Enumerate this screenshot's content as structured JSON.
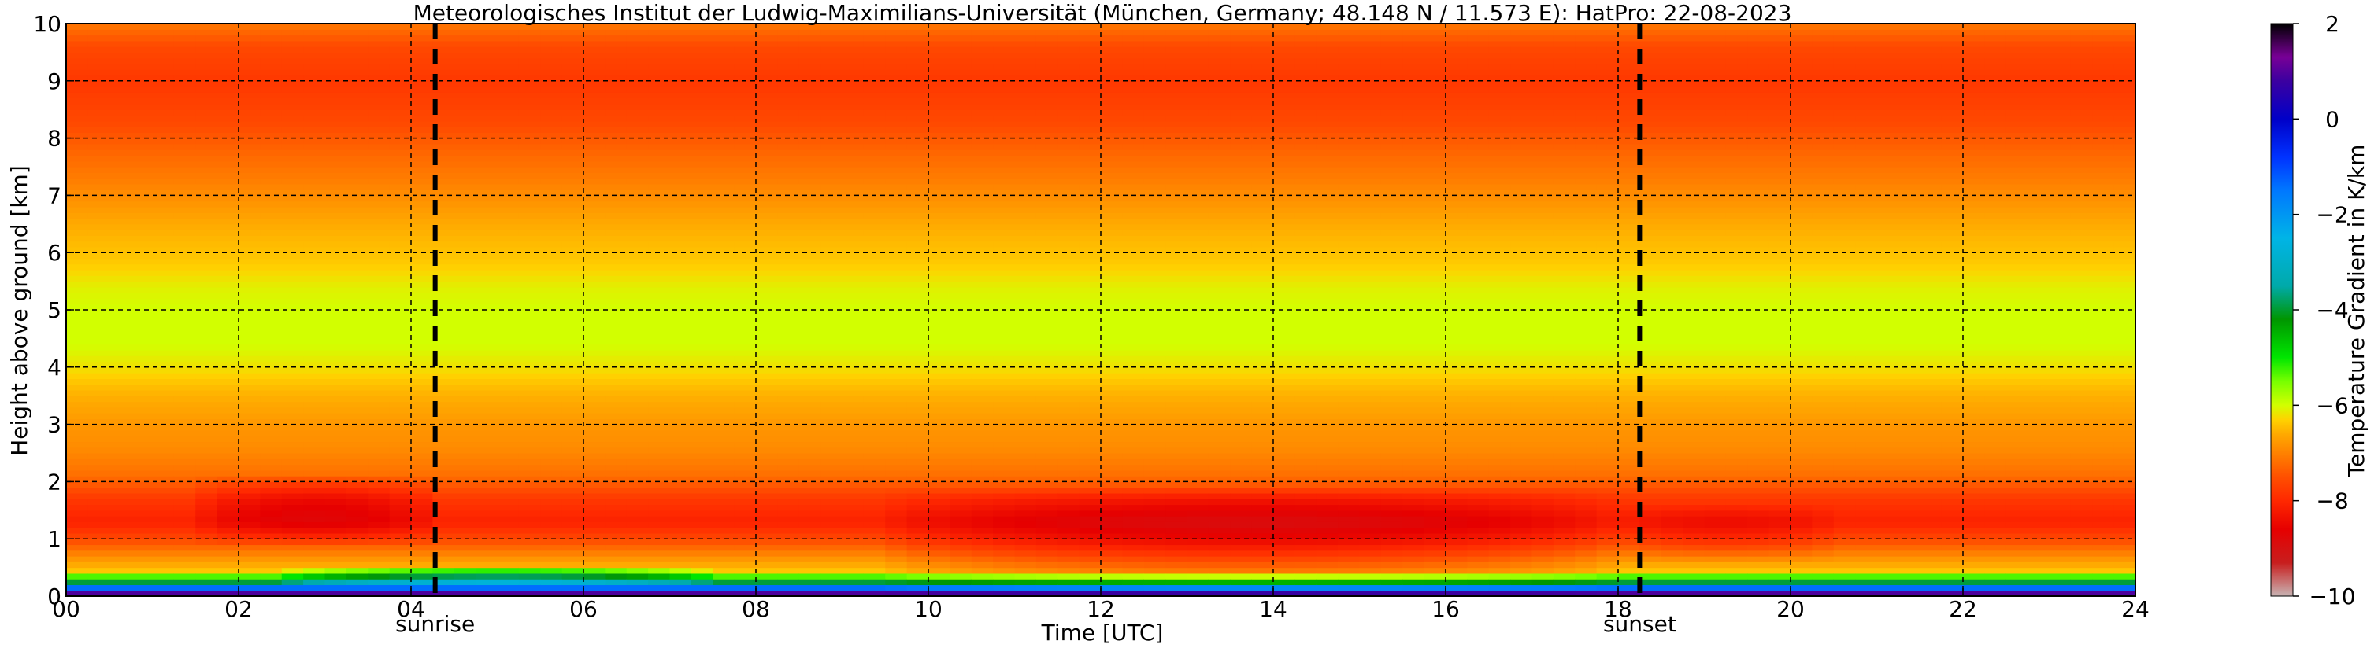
{
  "chart_data": {
    "type": "heatmap",
    "title": "Meteorologisches Institut der Ludwig-Maximilians-Universität (München, Germany; 48.148 N / 11.573 E):    HatPro: 22-08-2023",
    "xlabel": "Time [UTC]",
    "ylabel": "Height above ground [km]",
    "xlim": [
      0,
      24
    ],
    "ylim": [
      0,
      10
    ],
    "x_ticks": [
      {
        "value": 0,
        "label": "00"
      },
      {
        "value": 2,
        "label": "02"
      },
      {
        "value": 4,
        "label": "04"
      },
      {
        "value": 6,
        "label": "06"
      },
      {
        "value": 8,
        "label": "08"
      },
      {
        "value": 10,
        "label": "10"
      },
      {
        "value": 12,
        "label": "12"
      },
      {
        "value": 14,
        "label": "14"
      },
      {
        "value": 16,
        "label": "16"
      },
      {
        "value": 18,
        "label": "18"
      },
      {
        "value": 20,
        "label": "20"
      },
      {
        "value": 22,
        "label": "22"
      },
      {
        "value": 24,
        "label": "24"
      }
    ],
    "y_ticks": [
      0,
      1,
      2,
      3,
      4,
      5,
      6,
      7,
      8,
      9,
      10
    ],
    "grid": "dashed",
    "events": [
      {
        "name": "sunrise",
        "time": 4.28
      },
      {
        "name": "sunset",
        "time": 18.25
      }
    ],
    "colorbar": {
      "label": "Temperature Gradient in K/km",
      "range": [
        -10,
        2
      ],
      "ticks": [
        2,
        0,
        -2,
        -4,
        -6,
        -8,
        -10
      ],
      "colors": [
        {
          "value": -10,
          "color": "#c8b4b4"
        },
        {
          "value": -9.3,
          "color": "#c81e1e"
        },
        {
          "value": -8.6,
          "color": "#e60000"
        },
        {
          "value": -8.0,
          "color": "#ff2800"
        },
        {
          "value": -7.5,
          "color": "#ff5000"
        },
        {
          "value": -7.0,
          "color": "#ff8200"
        },
        {
          "value": -6.6,
          "color": "#ffaa00"
        },
        {
          "value": -6.3,
          "color": "#ffd200"
        },
        {
          "value": -6.0,
          "color": "#d2ff00"
        },
        {
          "value": -5.5,
          "color": "#78ff00"
        },
        {
          "value": -5.0,
          "color": "#00e600"
        },
        {
          "value": -4.2,
          "color": "#009600"
        },
        {
          "value": -3.5,
          "color": "#00aaaa"
        },
        {
          "value": -2.5,
          "color": "#00b4e6"
        },
        {
          "value": -1.5,
          "color": "#0078ff"
        },
        {
          "value": -0.8,
          "color": "#0032ff"
        },
        {
          "value": 0.0,
          "color": "#0000c8"
        },
        {
          "value": 0.8,
          "color": "#3c00a0"
        },
        {
          "value": 1.3,
          "color": "#780096"
        },
        {
          "value": 2.0,
          "color": "#000000"
        }
      ]
    },
    "height_profile": [
      {
        "h": 0.0,
        "value": 2.0
      },
      {
        "h": 0.12,
        "value": -0.5
      },
      {
        "h": 0.22,
        "value": -3.5
      },
      {
        "h": 0.32,
        "value": -5.0
      },
      {
        "h": 0.45,
        "value": -6.4
      },
      {
        "h": 0.7,
        "value": -6.9
      },
      {
        "h": 1.0,
        "value": -7.6
      },
      {
        "h": 1.3,
        "value": -8.1
      },
      {
        "h": 1.7,
        "value": -7.8
      },
      {
        "h": 2.1,
        "value": -7.2
      },
      {
        "h": 2.6,
        "value": -6.9
      },
      {
        "h": 3.0,
        "value": -6.8
      },
      {
        "h": 3.6,
        "value": -6.5
      },
      {
        "h": 4.0,
        "value": -6.2
      },
      {
        "h": 4.4,
        "value": -6.0
      },
      {
        "h": 5.0,
        "value": -6.0
      },
      {
        "h": 5.4,
        "value": -6.1
      },
      {
        "h": 5.8,
        "value": -6.35
      },
      {
        "h": 6.5,
        "value": -6.6
      },
      {
        "h": 7.2,
        "value": -7.0
      },
      {
        "h": 7.8,
        "value": -7.3
      },
      {
        "h": 8.3,
        "value": -7.6
      },
      {
        "h": 9.0,
        "value": -7.8
      },
      {
        "h": 9.6,
        "value": -7.6
      },
      {
        "h": 10.0,
        "value": -7.1
      }
    ],
    "anomalies": [
      {
        "t0": 1.5,
        "t1": 4.3,
        "h0": 0.9,
        "h1": 2.1,
        "delta": -0.7
      },
      {
        "t0": 9.5,
        "t1": 18.0,
        "h0": 0.0,
        "h1": 1.9,
        "delta": -0.9
      },
      {
        "t0": 18.0,
        "t1": 20.5,
        "h0": 0.6,
        "h1": 1.6,
        "delta": -0.4
      },
      {
        "t0": 2.5,
        "t1": 7.5,
        "h0": 0.15,
        "h1": 0.55,
        "delta": 1.5
      }
    ]
  }
}
